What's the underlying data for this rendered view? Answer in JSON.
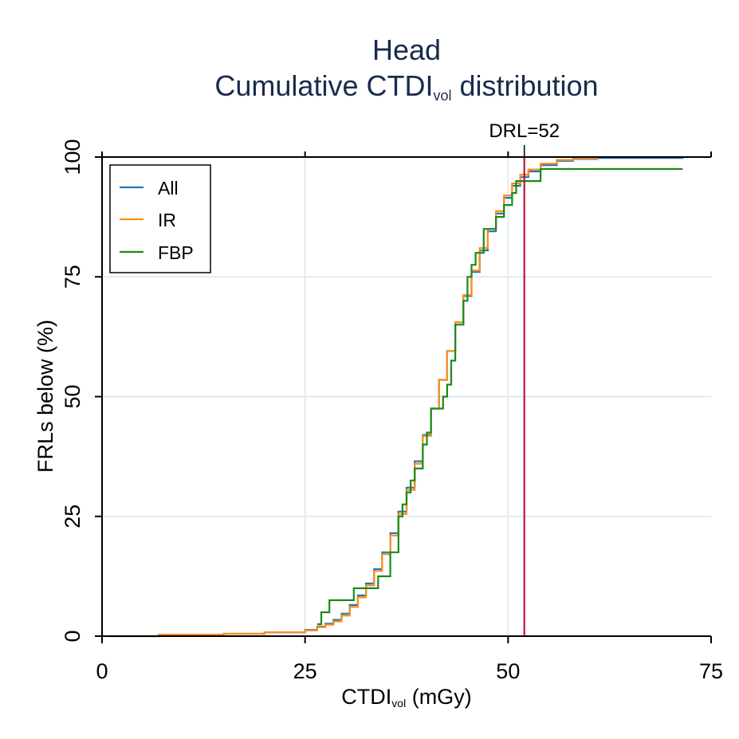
{
  "chart_data": {
    "type": "line",
    "title": "Head",
    "subtitle_main": "Cumulative CTDI",
    "subtitle_sub": "vol",
    "subtitle_tail": " distribution",
    "xlabel_main": "CTDI",
    "xlabel_sub": "vol",
    "xlabel_tail": " (mGy)",
    "ylabel": "FRLs below (%)",
    "xlim": [
      0,
      75
    ],
    "ylim": [
      0,
      100
    ],
    "x_ticks": [
      0,
      25,
      50,
      75
    ],
    "y_ticks": [
      0,
      25,
      50,
      75,
      100
    ],
    "x_tick_labels": [
      "0",
      "25",
      "50",
      "75"
    ],
    "y_tick_labels": [
      "0",
      "25",
      "50",
      "75",
      "100"
    ],
    "grid": true,
    "legend_position": "top-left",
    "reference_line": {
      "x": 52,
      "label": "DRL=52",
      "color": "#b5163a"
    },
    "series": [
      {
        "name": "All",
        "color": "#1f77b4",
        "x": [
          1,
          7,
          15,
          20,
          25,
          26.5,
          27.5,
          28.5,
          29.5,
          30.5,
          31.5,
          32.5,
          33.5,
          34.5,
          35.5,
          36.5,
          37.5,
          38.5,
          39.5,
          40.5,
          41.5,
          42.5,
          43.5,
          44.5,
          45.5,
          46.5,
          47.5,
          48.5,
          49.5,
          50.5,
          51.5,
          52.5,
          54,
          56,
          58,
          61,
          71.5
        ],
        "y": [
          0,
          0.3,
          0.5,
          0.8,
          1.3,
          2,
          2.6,
          3.4,
          4.7,
          6.5,
          8.5,
          11,
          14,
          17.5,
          21.5,
          26,
          31,
          36.5,
          42,
          47.5,
          53.5,
          59.5,
          65.5,
          71,
          76,
          80.5,
          84.5,
          88.2,
          91.5,
          94,
          95.8,
          97,
          98.3,
          99.2,
          99.6,
          99.8,
          99.9
        ]
      },
      {
        "name": "IR",
        "color": "#ff8c1a",
        "x": [
          1,
          7,
          15,
          20,
          25,
          26.5,
          27.5,
          28.5,
          29.5,
          30.5,
          31.5,
          32.5,
          33.5,
          34.5,
          35.5,
          36.5,
          37.5,
          38.5,
          39.5,
          40.5,
          41.5,
          42.5,
          43.5,
          44.5,
          45.5,
          46.5,
          47.5,
          48.5,
          49.5,
          50.5,
          51.5,
          52.5,
          54,
          56,
          58,
          61
        ],
        "y": [
          0,
          0.3,
          0.5,
          0.8,
          1.2,
          1.9,
          2.4,
          3.1,
          4.3,
          6.1,
          8.1,
          10.6,
          13.6,
          17.1,
          21,
          25.5,
          30.5,
          36,
          41.8,
          47.5,
          53.5,
          59.5,
          65.5,
          71.2,
          76.3,
          81,
          85,
          88.7,
          92,
          94.5,
          96.3,
          97.4,
          98.6,
          99.4,
          99.7,
          99.9
        ]
      },
      {
        "name": "FBP",
        "color": "#1a8a1a",
        "x": [
          26.5,
          27,
          28,
          31,
          34,
          35.5,
          36.5,
          37,
          37.5,
          38,
          38.5,
          39.5,
          40,
          40.5,
          42,
          42.5,
          43,
          43.5,
          44.5,
          45,
          45.5,
          46,
          47,
          47.5,
          48.5,
          49.5,
          50.5,
          51,
          52,
          54,
          56,
          58,
          61,
          71.5
        ],
        "y": [
          2.5,
          5,
          7.5,
          10,
          12.5,
          17.5,
          25,
          27.5,
          30,
          32.5,
          35,
          40,
          42.5,
          47.5,
          50,
          52.5,
          57.5,
          65,
          70,
          75,
          77.5,
          80,
          85,
          85,
          87.5,
          90,
          92.5,
          95,
          95,
          97.5,
          97.5,
          97.5,
          97.5,
          97.5
        ]
      }
    ]
  }
}
